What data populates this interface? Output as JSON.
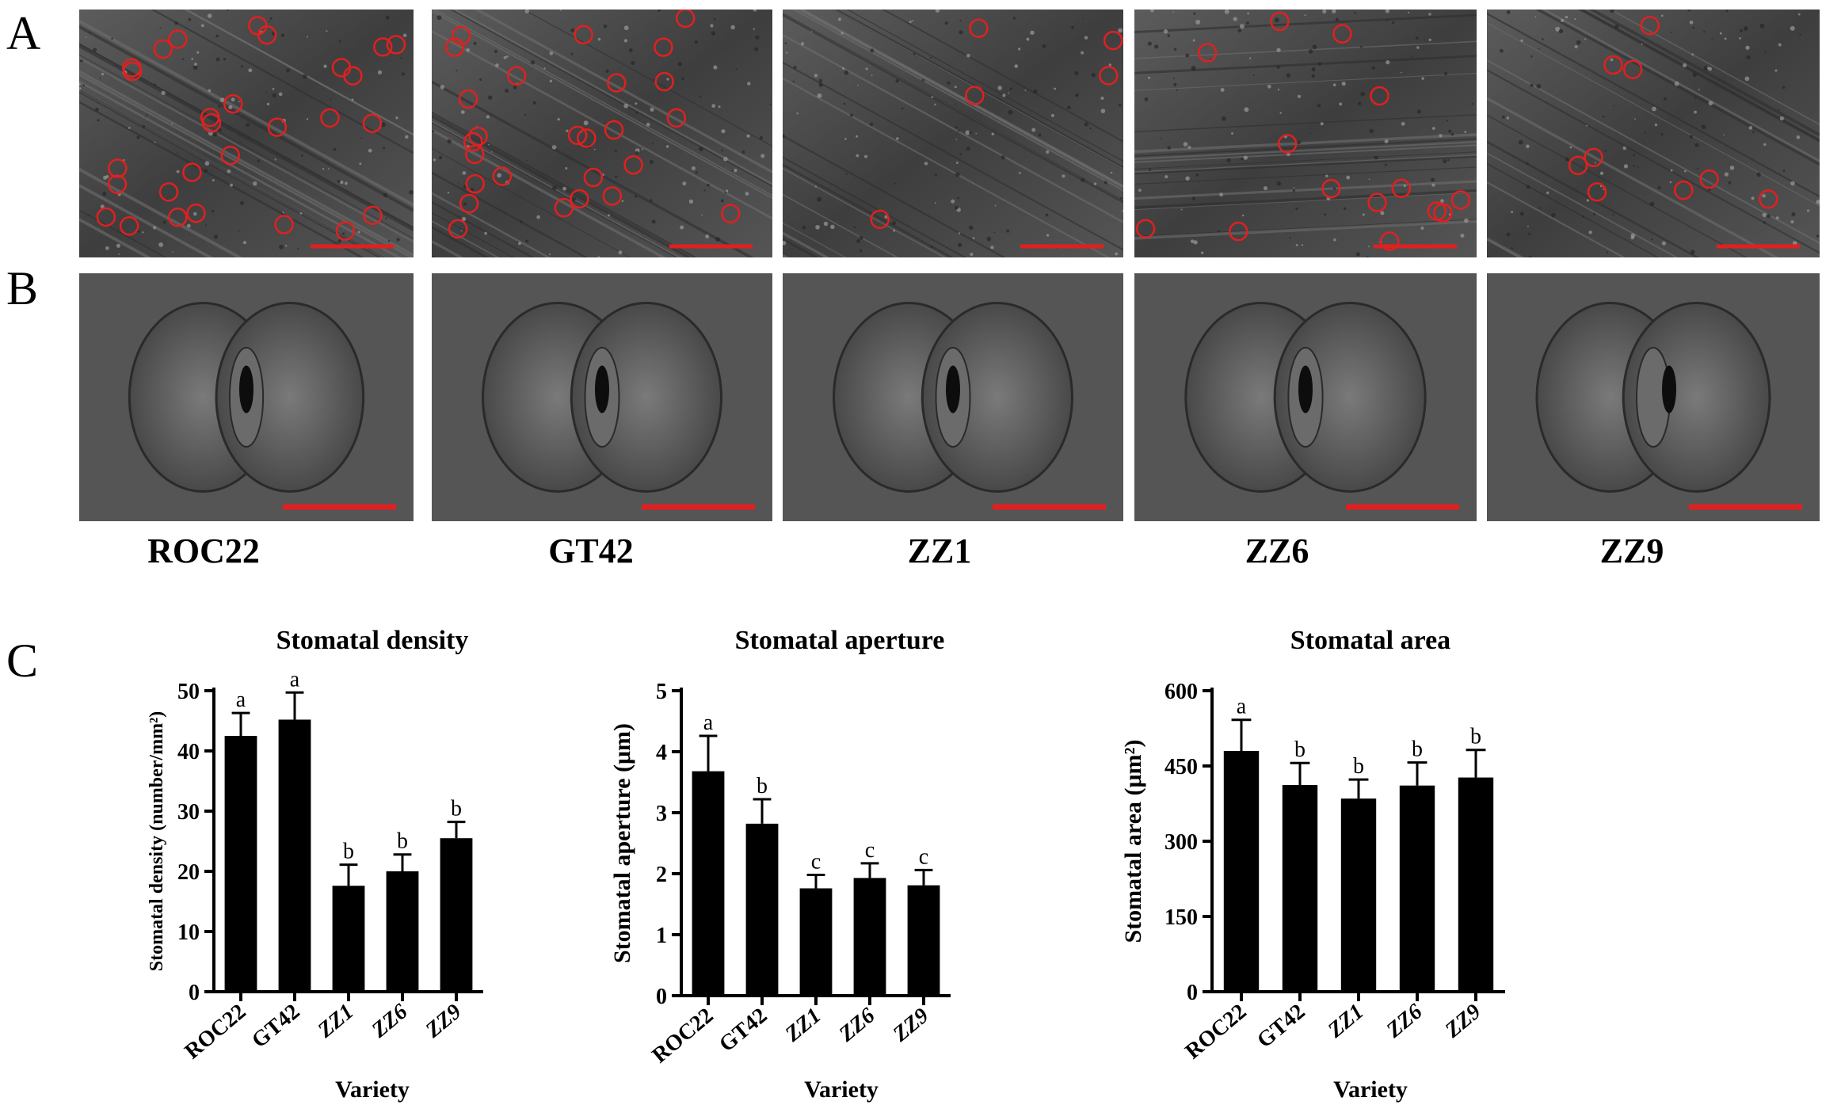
{
  "panels": {
    "a": "A",
    "b": "B",
    "c": "C"
  },
  "varieties": [
    "ROC22",
    "GT42",
    "ZZ1",
    "ZZ6",
    "ZZ9"
  ],
  "colors": {
    "stomata_marker": "#e02020",
    "scale_bar": "#e02020",
    "bar_fill": "#000000",
    "sem_base": "#4a4a4a"
  },
  "chart_data": [
    {
      "type": "bar",
      "title": "Stomatal density",
      "ylabel": "Stomatal density (number/mm²)",
      "xlabel": "Variety",
      "categories": [
        "ROC22",
        "GT42",
        "ZZ1",
        "ZZ6",
        "ZZ9"
      ],
      "values": [
        42.5,
        45.2,
        17.6,
        20.0,
        25.5
      ],
      "errors": [
        3.8,
        4.5,
        3.5,
        2.8,
        2.7
      ],
      "letters": [
        "a",
        "a",
        "b",
        "b",
        "b"
      ],
      "ylim": [
        0,
        50
      ],
      "yticks": [
        0,
        10,
        20,
        30,
        40,
        50
      ]
    },
    {
      "type": "bar",
      "title": "Stomatal aperture",
      "ylabel": "Stomatal aperture (μm)",
      "xlabel": "Variety",
      "categories": [
        "ROC22",
        "GT42",
        "ZZ1",
        "ZZ6",
        "ZZ9"
      ],
      "values": [
        3.68,
        2.82,
        1.76,
        1.93,
        1.81
      ],
      "errors": [
        0.58,
        0.4,
        0.22,
        0.24,
        0.25
      ],
      "letters": [
        "a",
        "b",
        "c",
        "c",
        "c"
      ],
      "ylim": [
        0,
        5
      ],
      "yticks": [
        0,
        1,
        2,
        3,
        4,
        5
      ]
    },
    {
      "type": "bar",
      "title": "Stomatal area",
      "ylabel": "Stomatal area (μm²)",
      "xlabel": "Variety",
      "categories": [
        "ROC22",
        "GT42",
        "ZZ1",
        "ZZ6",
        "ZZ9"
      ],
      "values": [
        480,
        412,
        385,
        411,
        427
      ],
      "errors": [
        62,
        44,
        38,
        46,
        55
      ],
      "letters": [
        "a",
        "b",
        "b",
        "b",
        "b"
      ],
      "ylim": [
        0,
        600
      ],
      "yticks": [
        0,
        150,
        300,
        450,
        600
      ]
    }
  ]
}
